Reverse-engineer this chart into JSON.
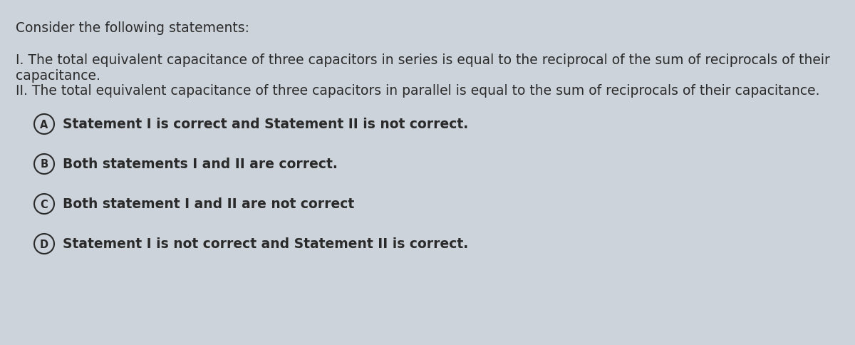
{
  "bg_color": "#cdd3db",
  "text_color": "#2a2a2a",
  "title": "Consider the following statements:",
  "statement1_line1": "I. The total equivalent capacitance of three capacitors in series is equal to the reciprocal of the sum of reciprocals of their",
  "statement1_line2": "capacitance.",
  "statement2": "II. The total equivalent capacitance of three capacitors in parallel is equal to the sum of reciprocals of their capacitance.",
  "options": [
    {
      "label": "A",
      "text": "Statement I is correct and Statement II is not correct."
    },
    {
      "label": "B",
      "text": "Both statements I and II are correct."
    },
    {
      "label": "C",
      "text": "Both statement I and II are not correct"
    },
    {
      "label": "D",
      "text": "Statement I is not correct and Statement II is correct."
    }
  ],
  "title_fontsize": 13.5,
  "body_fontsize": 13.5,
  "option_fontsize": 13.5,
  "option_label_fontsize": 10.5
}
